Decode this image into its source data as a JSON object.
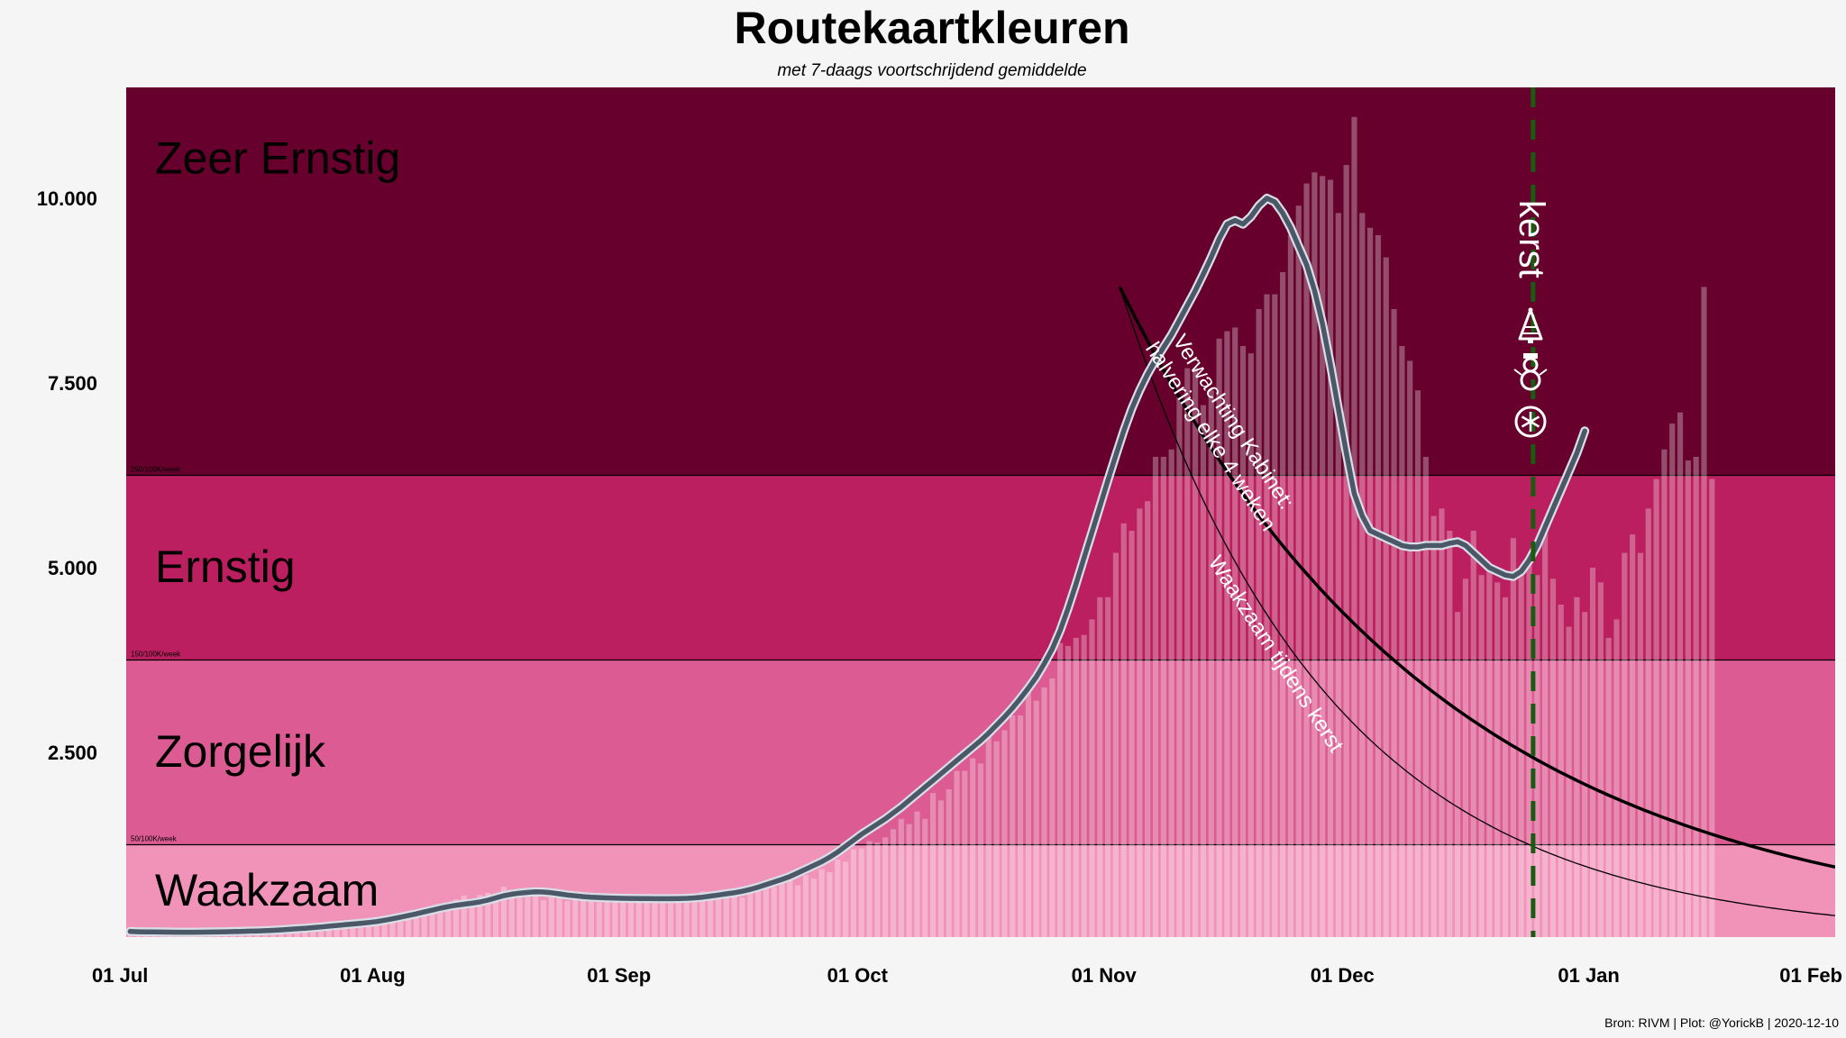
{
  "title": "Routekaartkleuren",
  "subtitle": "met 7-daags voortschrijdend gemiddelde",
  "source": "Bron: RIVM | Plot: @YorickB  |  2020-12-10",
  "colors": {
    "zeer_ernstig": "#67002d",
    "ernstig": "#bb1f5f",
    "zorgelijk": "#dc5b93",
    "waakzaam": "#f192b9",
    "bar": "#ffffff",
    "avg_line": "#4a5868",
    "avg_outline": "#d8dde6",
    "kerst_line": "#1a5c0f",
    "projection": "#000000"
  },
  "chart_data": {
    "type": "bar",
    "x_start": "2020-07-01",
    "x_end": "2021-02-01",
    "ylim": [
      0,
      11500
    ],
    "yticks": [
      2500,
      5000,
      7500,
      10000
    ],
    "ytick_labels": [
      "2.500",
      "5.000",
      "7.500",
      "10.000"
    ],
    "xticks": [
      "2020-07-01",
      "2020-08-01",
      "2020-09-01",
      "2020-10-01",
      "2020-11-01",
      "2020-12-01",
      "2021-01-01",
      "2021-02-01"
    ],
    "xtick_labels": [
      "01 Jul",
      "01 Aug",
      "01 Sep",
      "01 Oct",
      "01 Nov",
      "01 Dec",
      "01 Jan",
      "01 Feb"
    ],
    "zones": [
      {
        "label": "Waakzaam",
        "from": 0,
        "to": 1250,
        "threshold_label": ""
      },
      {
        "label": "Zorgelijk",
        "from": 1250,
        "to": 3750,
        "threshold_label": "50/100K/week"
      },
      {
        "label": "Ernstig",
        "from": 3750,
        "to": 6250,
        "threshold_label": "150/100K/week"
      },
      {
        "label": "Zeer Ernstig",
        "from": 6250,
        "to": 11500,
        "threshold_label": "250/100K/week"
      }
    ],
    "daily_cases_first_day": "2020-07-01",
    "daily_cases": [
      45,
      60,
      50,
      70,
      40,
      35,
      55,
      85,
      65,
      55,
      60,
      50,
      40,
      70,
      60,
      75,
      65,
      75,
      85,
      95,
      110,
      105,
      125,
      120,
      110,
      150,
      170,
      140,
      180,
      190,
      190,
      270,
      270,
      265,
      300,
      320,
      350,
      395,
      350,
      440,
      410,
      510,
      560,
      500,
      570,
      600,
      590,
      680,
      600,
      640,
      650,
      610,
      500,
      640,
      560,
      490,
      555,
      520,
      510,
      470,
      520,
      500,
      530,
      510,
      510,
      540,
      480,
      500,
      460,
      510,
      500,
      510,
      620,
      600,
      560,
      540,
      600,
      540,
      610,
      620,
      680,
      680,
      740,
      790,
      700,
      840,
      790,
      920,
      880,
      1050,
      1020,
      1190,
      1200,
      1300,
      1280,
      1350,
      1460,
      1600,
      1530,
      1700,
      1600,
      1950,
      1850,
      2000,
      2250,
      2250,
      2420,
      2350,
      2750,
      2650,
      2800,
      3000,
      3000,
      3350,
      3200,
      3380,
      3500,
      3980,
      3940,
      4050,
      4090,
      4300,
      4600,
      4600,
      5200,
      5600,
      5500,
      5800,
      5900,
      6500,
      6500,
      6600,
      7300,
      7700,
      7700,
      7200,
      7400,
      8100,
      8200,
      8250,
      8000,
      7900,
      8500,
      8700,
      8700,
      9000,
      9500,
      9900,
      10200,
      10350,
      10300,
      10250,
      9800,
      10450,
      11100,
      9800,
      9600,
      9500,
      9200,
      8500,
      8000,
      7800,
      7400,
      6500,
      5700,
      5800,
      5500,
      4400,
      4850,
      5500,
      4900,
      5000,
      4800,
      4600,
      5400,
      5000,
      5100,
      4900,
      5500,
      4850,
      4500,
      4200,
      4600,
      4400,
      5000,
      4800,
      4050,
      4300,
      5200,
      5450,
      5200,
      5800,
      6200,
      6600,
      6950,
      7100,
      6450,
      6500,
      8800,
      6200
    ],
    "rolling_avg_first_day": "2020-07-01",
    "rolling_avg": [
      75,
      72,
      70,
      69,
      68,
      67,
      66,
      66,
      66,
      67,
      68,
      70,
      72,
      74,
      77,
      80,
      83,
      87,
      92,
      98,
      105,
      112,
      120,
      128,
      137,
      147,
      157,
      167,
      177,
      187,
      198,
      210,
      228,
      248,
      270,
      292,
      315,
      340,
      365,
      390,
      412,
      430,
      445,
      458,
      475,
      500,
      530,
      560,
      580,
      595,
      605,
      612,
      610,
      600,
      585,
      570,
      558,
      548,
      540,
      535,
      530,
      527,
      525,
      523,
      522,
      521,
      520,
      520,
      520,
      522,
      525,
      530,
      540,
      555,
      570,
      585,
      600,
      620,
      645,
      675,
      710,
      745,
      780,
      820,
      870,
      920,
      970,
      1020,
      1080,
      1150,
      1230,
      1310,
      1390,
      1460,
      1530,
      1600,
      1680,
      1760,
      1850,
      1940,
      2030,
      2120,
      2210,
      2300,
      2390,
      2480,
      2570,
      2660,
      2760,
      2870,
      2980,
      3100,
      3230,
      3370,
      3520,
      3700,
      3900,
      4150,
      4450,
      4780,
      5130,
      5480,
      5830,
      6180,
      6520,
      6850,
      7150,
      7400,
      7620,
      7810,
      7980,
      8150,
      8350,
      8550,
      8750,
      8970,
      9200,
      9450,
      9650,
      9700,
      9650,
      9750,
      9900,
      10000,
      9950,
      9800,
      9600,
      9350,
      9100,
      8750,
      8300,
      7750,
      7150,
      6550,
      6000,
      5700,
      5500,
      5450,
      5400,
      5350,
      5300,
      5280,
      5280,
      5300,
      5300,
      5300,
      5330,
      5350,
      5300,
      5200,
      5100,
      5000,
      4950,
      4900,
      4880,
      4950,
      5100,
      5300,
      5550,
      5800,
      6050,
      6300,
      6550,
      6850
    ],
    "projections": [
      {
        "name": "Verwachting Kabinet: halvering elke 4 weken",
        "start": "2020-11-03",
        "start_value": 8800,
        "half_life_days": 28,
        "end": "2021-02-01"
      },
      {
        "name": "Waakzaam tijdens kerst",
        "start": "2020-11-03",
        "start_value": 8800,
        "half_life_days": 18.3,
        "end": "2021-02-01"
      }
    ],
    "annotations": [
      {
        "text_line1": "Verwachting Kabinet:",
        "text_line2": "halvering elke 4 weken"
      },
      {
        "text": "Waakzaam tijdens kerst"
      }
    ],
    "vline": {
      "date": "2020-12-25",
      "label": "kerst",
      "style": "dashed"
    },
    "icons": [
      "christmas-tree-icon",
      "snowman-icon",
      "snowflake-icon"
    ]
  }
}
